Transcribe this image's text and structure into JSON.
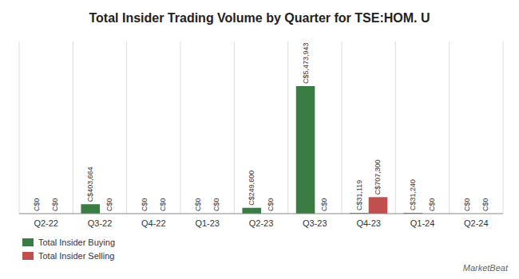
{
  "chart_data": {
    "type": "bar",
    "title": "Total Insider Trading Volume by Quarter for TSE:HOM. U",
    "categories": [
      "Q2-22",
      "Q3-22",
      "Q4-22",
      "Q1-23",
      "Q2-23",
      "Q3-23",
      "Q4-23",
      "Q1-24",
      "Q2-24"
    ],
    "series": [
      {
        "name": "Total Insider Buying",
        "color": "#3a7d44",
        "values": [
          0,
          403664,
          0,
          0,
          249600,
          5473943,
          31119,
          31240,
          0
        ],
        "value_labels": [
          "C$0",
          "C$403,664",
          "C$0",
          "C$0",
          "C$249,600",
          "C$5,473,943",
          "C$31,119",
          "C$31,240",
          "C$0"
        ]
      },
      {
        "name": "Total Insider Selling",
        "color": "#c0504d",
        "values": [
          0,
          0,
          0,
          0,
          0,
          0,
          707300,
          0,
          0
        ],
        "value_labels": [
          "C$0",
          "C$0",
          "C$0",
          "C$0",
          "C$0",
          "C$0",
          "C$707,300",
          "C$0",
          "C$0"
        ]
      }
    ],
    "ylim": [
      0,
      7389823.05
    ],
    "tick_labels": "x",
    "data_labels": true,
    "legend": "bottom",
    "annotations": [
      "MarketBeat"
    ]
  }
}
